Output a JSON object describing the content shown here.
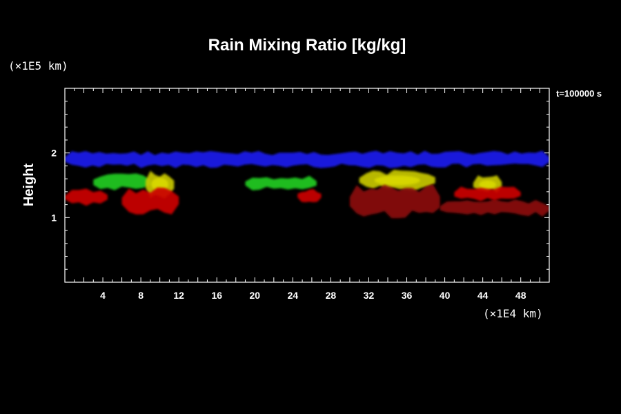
{
  "chart_data": {
    "type": "heatmap",
    "title": "Rain Mixing Ratio [kg/kg]",
    "ylabel": "Height",
    "y_unit": "(×1E5 km)",
    "x_unit": "(×1E4 km)",
    "time_label": "t=100000 s",
    "xlim": [
      0,
      51
    ],
    "ylim": [
      0,
      3
    ],
    "x_ticks": [
      4,
      8,
      12,
      16,
      20,
      24,
      28,
      32,
      36,
      40,
      44,
      48
    ],
    "x_tick_labels": [
      "4",
      "8",
      "12",
      "16",
      "20",
      "24",
      "28",
      "32",
      "36",
      "40",
      "44",
      "48"
    ],
    "y_ticks": [
      1,
      2
    ],
    "y_tick_labels": [
      "1",
      "2"
    ],
    "grid": false,
    "colors": {
      "blue": "#1a1aee",
      "green": "#22cc22",
      "yellow": "#c8c800",
      "red": "#cc0000",
      "dark_red": "#8b0a0a"
    },
    "features": [
      {
        "color": "blue",
        "x": [
          0,
          51
        ],
        "y": [
          1.8,
          2.0
        ]
      },
      {
        "color": "green",
        "x": [
          3.0,
          9.0
        ],
        "y": [
          1.45,
          1.65
        ]
      },
      {
        "color": "yellow",
        "x": [
          8.5,
          11.5
        ],
        "y": [
          1.35,
          1.68
        ]
      },
      {
        "color": "green",
        "x": [
          19.0,
          26.5
        ],
        "y": [
          1.45,
          1.62
        ]
      },
      {
        "color": "yellow",
        "x": [
          31.0,
          39.0
        ],
        "y": [
          1.45,
          1.7
        ]
      },
      {
        "color": "yellow",
        "x": [
          43.0,
          46.0
        ],
        "y": [
          1.4,
          1.62
        ]
      },
      {
        "color": "red",
        "x": [
          0,
          4.5
        ],
        "y": [
          1.2,
          1.42
        ]
      },
      {
        "color": "red",
        "x": [
          6.0,
          12.0
        ],
        "y": [
          1.1,
          1.42
        ]
      },
      {
        "color": "red",
        "x": [
          24.5,
          27.0
        ],
        "y": [
          1.25,
          1.42
        ]
      },
      {
        "color": "dark_red",
        "x": [
          30.0,
          39.5
        ],
        "y": [
          1.05,
          1.45
        ]
      },
      {
        "color": "dark_red",
        "x": [
          39.5,
          51.0
        ],
        "y": [
          1.05,
          1.25
        ]
      },
      {
        "color": "red",
        "x": [
          41.0,
          48.0
        ],
        "y": [
          1.28,
          1.45
        ]
      }
    ]
  }
}
